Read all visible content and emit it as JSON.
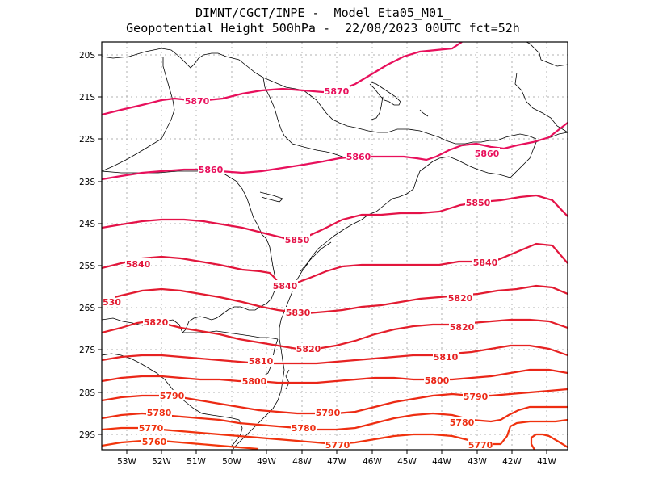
{
  "header": {
    "line1": "DIMNT/CGCT/INPE -  Model Eta05_M01_",
    "line2": "Geopotential Height 500hPa -  22/08/2023 00UTC fct=52h"
  },
  "axes": {
    "lon_labels": [
      "53W",
      "52W",
      "51W",
      "50W",
      "49W",
      "48W",
      "47W",
      "46W",
      "45W",
      "44W",
      "43W",
      "42W",
      "41W"
    ],
    "lat_labels": [
      "20S",
      "21S",
      "22S",
      "23S",
      "24S",
      "25S",
      "26S",
      "27S",
      "28S",
      "29S"
    ],
    "lon_range": [
      -53.65,
      -40.5
    ],
    "lat_range": [
      -29.4,
      -19.7
    ],
    "grid": true
  },
  "contour_labels": [
    "5870",
    "5870",
    "5860",
    "5860",
    "5860",
    "5850",
    "5850",
    "5840",
    "5840",
    "5840",
    "530",
    "5830",
    "5820",
    "5820",
    "5820",
    "5810",
    "5810",
    "5800",
    "5800",
    "5790",
    "5790",
    "5790",
    "5780",
    "5780",
    "5780",
    "5770",
    "5770",
    "5770",
    "5760"
  ],
  "colors": {
    "c5870": "#e8105c",
    "c5860": "#e8105c",
    "c5850": "#e41248",
    "c5840": "#e2163c",
    "c5830": "#e21a30",
    "c5820": "#e41e2a",
    "c5810": "#e62222",
    "c5800": "#ea2618",
    "c5790": "#ec2a14",
    "c5780": "#ee2e12",
    "c5770": "#f0320e",
    "c5760": "#f2360c"
  }
}
